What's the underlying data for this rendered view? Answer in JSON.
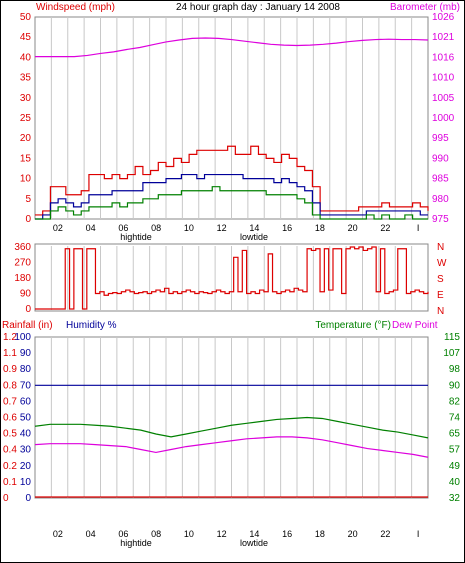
{
  "header": {
    "title": "24 hour graph day : January 14 2008",
    "left_label": "Windspeed (mph)",
    "right_label": "Barometer (mb)"
  },
  "tide": {
    "high": "hightide",
    "low": "lowtide"
  },
  "colors": {
    "red": "#dd0000",
    "magenta": "#dd00dd",
    "green": "#008000",
    "blue": "#000099",
    "grid": "#c8c8c8"
  },
  "chart_data": [
    {
      "type": "line",
      "id": "wind-barometer",
      "xlabel": "",
      "ylabel": "Windspeed (mph)",
      "y2label": "Barometer (mb)",
      "x_ticks": [
        "02",
        "04",
        "06",
        "08",
        "10",
        "12",
        "14",
        "16",
        "18",
        "20",
        "22",
        "I"
      ],
      "y_ticks": [
        "0",
        "5",
        "10",
        "15",
        "20",
        "25",
        "30",
        "35",
        "40",
        "45",
        "50"
      ],
      "y2_ticks": [
        "975",
        "980",
        "985",
        "990",
        "995",
        "1000",
        "1005",
        "1010",
        "1016",
        "1021",
        "1026"
      ],
      "ylim": [
        0,
        50
      ],
      "y2lim": [
        975,
        1026
      ],
      "xlim": [
        0,
        24
      ],
      "series": [
        {
          "key": "gust",
          "axis": "left",
          "color": "#dd0000",
          "values": [
            1,
            2,
            8,
            8,
            6,
            6,
            7,
            11,
            11,
            10,
            11,
            10,
            11,
            13,
            11,
            12,
            14,
            13,
            15,
            14,
            16,
            17,
            17,
            17,
            17,
            18,
            16,
            16,
            18,
            16,
            15,
            14,
            16,
            15,
            13,
            12,
            8,
            2,
            2,
            2,
            2,
            2,
            3,
            3,
            3,
            4,
            3,
            3,
            3,
            4,
            3,
            2
          ]
        },
        {
          "key": "avg",
          "axis": "left",
          "color": "#000099",
          "values": [
            0,
            1,
            4,
            5,
            4,
            3,
            4,
            6,
            6,
            6,
            7,
            7,
            7,
            7,
            9,
            9,
            9,
            10,
            10,
            11,
            11,
            10,
            11,
            11,
            11,
            11,
            11,
            10,
            10,
            10,
            10,
            9,
            10,
            9,
            8,
            7,
            4,
            1,
            1,
            1,
            1,
            1,
            1,
            2,
            2,
            2,
            2,
            2,
            2,
            2,
            1,
            1
          ]
        },
        {
          "key": "min",
          "axis": "left",
          "color": "#008000",
          "values": [
            0,
            0,
            2,
            3,
            2,
            1,
            2,
            3,
            3,
            3,
            4,
            3,
            4,
            4,
            5,
            5,
            6,
            6,
            6,
            7,
            7,
            7,
            7,
            8,
            7,
            7,
            7,
            7,
            7,
            7,
            6,
            6,
            6,
            6,
            5,
            4,
            1,
            0,
            0,
            0,
            0,
            0,
            0,
            1,
            0,
            1,
            0,
            0,
            1,
            0,
            0,
            0
          ]
        },
        {
          "key": "barometer",
          "axis": "right",
          "color": "#dd00dd",
          "values": [
            1016,
            1016,
            1016,
            1016,
            1016.3,
            1016.8,
            1017.2,
            1017.8,
            1018.3,
            1019,
            1019.7,
            1020.2,
            1020.6,
            1020.7,
            1020.6,
            1020.3,
            1019.9,
            1019.5,
            1019.1,
            1018.9,
            1018.8,
            1018.9,
            1019.1,
            1019.4,
            1019.8,
            1020.1,
            1020.3,
            1020.4,
            1020.3,
            1020.3,
            1020.2
          ]
        }
      ]
    },
    {
      "type": "line",
      "id": "wind-direction",
      "ylabel": "",
      "ylim": [
        0,
        360
      ],
      "y_ticks": [
        "0",
        "90",
        "180",
        "270",
        "360"
      ],
      "y2_ticks": [
        "N",
        "E",
        "S",
        "W",
        "N"
      ],
      "series": [
        {
          "key": "direction",
          "color": "#dd0000",
          "values": [
            0,
            0,
            0,
            0,
            0,
            0,
            0,
            350,
            0,
            350,
            350,
            0,
            350,
            350,
            90,
            100,
            80,
            90,
            95,
            90,
            100,
            110,
            100,
            90,
            95,
            100,
            90,
            100,
            110,
            100,
            120,
            90,
            100,
            90,
            100,
            110,
            100,
            90,
            100,
            95,
            90,
            100,
            110,
            100,
            90,
            100,
            300,
            100,
            340,
            90,
            100,
            90,
            110,
            100,
            320,
            100,
            90,
            100,
            110,
            100,
            120,
            110,
            100,
            350,
            340,
            350,
            100,
            350,
            110,
            350,
            350,
            90,
            350,
            360,
            350,
            360,
            340,
            350,
            360,
            100,
            350,
            90,
            100,
            110,
            350,
            350,
            90,
            100,
            110,
            100,
            90,
            100
          ]
        }
      ]
    },
    {
      "type": "line",
      "id": "rain-humidity-temp",
      "ylabel": "Rainfall (in)",
      "y1label": "Humidity %",
      "y2label": "Temperature (°F)",
      "y3label": "Dew Point",
      "ylim": [
        0,
        1.2
      ],
      "humidity_lim": [
        0,
        100
      ],
      "temp_lim": [
        32,
        115
      ],
      "y_ticks": [
        "0",
        "0.1",
        "0.2",
        "0.4",
        "0.5",
        "0.6",
        "0.7",
        "0.8",
        "0.9",
        "1.1",
        "1.2"
      ],
      "humidity_ticks": [
        "0",
        "10",
        "20",
        "30",
        "40",
        "50",
        "60",
        "70",
        "80",
        "90",
        "100"
      ],
      "temp_ticks": [
        "32",
        "40",
        "49",
        "57",
        "65",
        "74",
        "82",
        "90",
        "98",
        "107",
        "115"
      ],
      "series": [
        {
          "key": "rainfall",
          "axis": "rain",
          "color": "#dd0000",
          "values": [
            0,
            0,
            0,
            0,
            0,
            0,
            0,
            0,
            0,
            0,
            0,
            0,
            0,
            0,
            0,
            0,
            0,
            0,
            0,
            0,
            0,
            0,
            0,
            0,
            0,
            0
          ]
        },
        {
          "key": "humidity",
          "axis": "humidity",
          "color": "#000099",
          "values": [
            70,
            70,
            70,
            70,
            70,
            70,
            70,
            70,
            70,
            70,
            70,
            70,
            70,
            70,
            70,
            70,
            70,
            70,
            70,
            70,
            70,
            70,
            70,
            70,
            70,
            70
          ]
        },
        {
          "key": "temperature",
          "axis": "temp",
          "color": "#008000",
          "values": [
            69,
            70,
            70,
            70,
            69.5,
            69,
            68,
            67,
            65,
            63.5,
            65,
            66.5,
            68,
            69.5,
            70.5,
            71.5,
            72.5,
            73,
            73.5,
            73,
            71.5,
            70,
            68.5,
            67,
            66,
            64.5,
            63
          ]
        },
        {
          "key": "dewpoint",
          "axis": "temp",
          "color": "#dd00dd",
          "values": [
            59.5,
            60,
            60,
            60,
            59.5,
            59,
            58.5,
            57,
            55.5,
            57,
            58.5,
            59.5,
            60.5,
            61.5,
            62.5,
            63,
            63.5,
            63.5,
            63,
            62,
            60.5,
            59,
            57.5,
            56.5,
            55.5,
            54.5,
            53
          ]
        }
      ]
    }
  ]
}
